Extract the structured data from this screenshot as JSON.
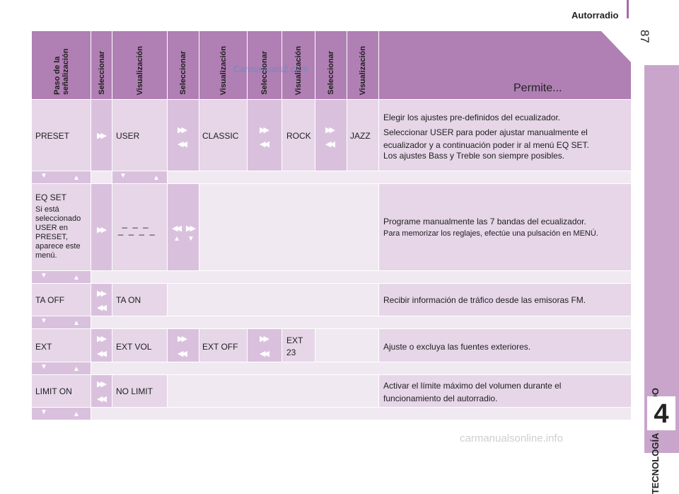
{
  "page": {
    "section": "Autorradio",
    "page_number": "87",
    "side_tab": "TECNOLOGÍA A BORDO",
    "chapter": "4",
    "watermark": "Carmanuals2.com",
    "footer_watermark": "carmanualsonline.info"
  },
  "header": [
    "Paso de la señalización",
    "Seleccionar",
    "Visualización",
    "Seleccionar",
    "Visualización",
    "Seleccionar",
    "Visualización",
    "Seleccionar",
    "Visualización",
    "Permite..."
  ],
  "rows": {
    "preset": {
      "label": "PRESET",
      "v1": "USER",
      "v2": "CLASSIC",
      "v3": "ROCK",
      "v4": "JAZZ",
      "desc1": "Elegir los ajustes pre-definidos del ecualizador.",
      "desc2": "Seleccionar USER para poder ajustar manualmente el ecualizador y a continuación poder ir al menú EQ SET.",
      "desc3": "Los ajustes Bass y Treble son siempre posibles."
    },
    "eqset": {
      "label": "EQ SET",
      "note": "Si está seleccionado USER en PRESET, aparece este menú.",
      "desc1": "Programe manualmente las 7 bandas del ecualizador.",
      "desc2": "Para memorizar los reglajes, efectúe una pulsación en MENÚ."
    },
    "ta": {
      "label": "TA OFF",
      "v1": "TA ON",
      "desc": "Recibir información de tráfico desde las emisoras FM."
    },
    "ext": {
      "label": "EXT",
      "v1": "EXT VOL",
      "v2": "EXT OFF",
      "v3": "EXT 23",
      "desc": "Ajuste o excluya las fuentes exteriores."
    },
    "limit": {
      "label": "LIMIT ON",
      "v1": "NO LIMIT",
      "desc": "Activar el límite máximo del volumen durante el funcionamiento del autorradio."
    }
  }
}
